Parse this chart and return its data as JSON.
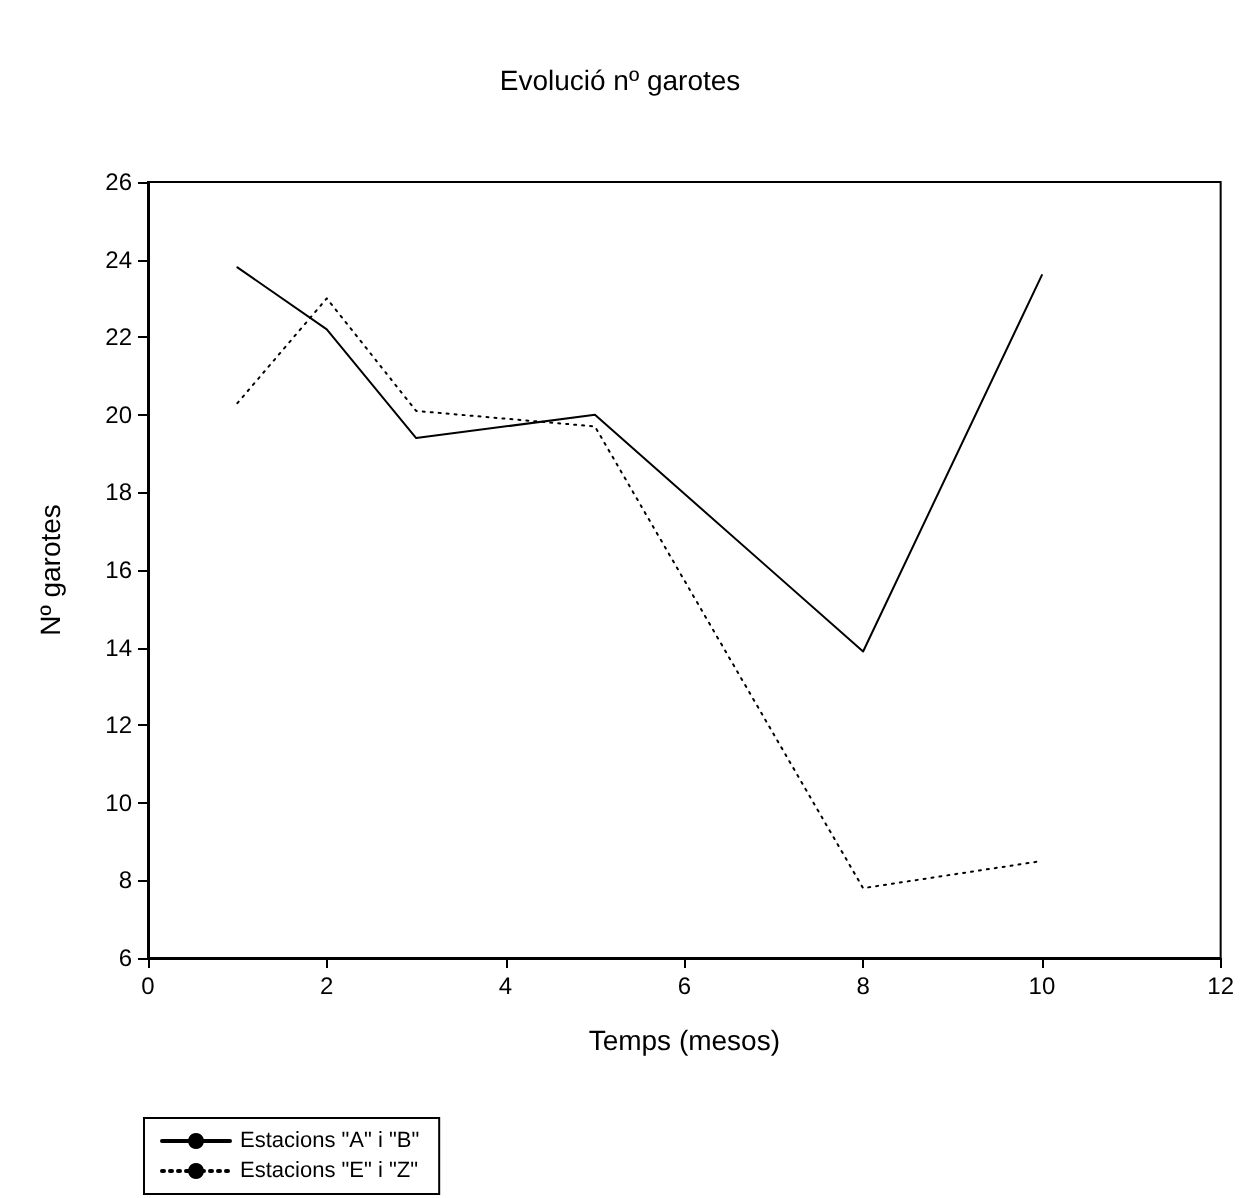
{
  "chart_data": {
    "type": "line",
    "title": "Evolució nº garotes",
    "xlabel": "Temps (mesos)",
    "ylabel": "Nº garotes",
    "x": [
      1,
      2,
      3,
      5,
      8,
      10
    ],
    "series": [
      {
        "name": "Estacions \"A\" i \"B\"",
        "color": "#000000",
        "line_style": "solid",
        "values": [
          23.8,
          22.2,
          19.4,
          20.0,
          13.9,
          23.6
        ]
      },
      {
        "name": "Estacions \"E\" i \"Z\"",
        "color": "#000000",
        "line_style": "dotted",
        "values": [
          20.3,
          23.0,
          20.1,
          19.7,
          7.8,
          8.5
        ]
      }
    ],
    "xlim": [
      0,
      12
    ],
    "xticks": [
      0,
      2,
      4,
      6,
      8,
      10,
      12
    ],
    "ylim": [
      6,
      26
    ],
    "yticks": [
      6,
      8,
      10,
      12,
      14,
      16,
      18,
      20,
      22,
      24,
      26
    ],
    "grid": false,
    "legend": "bottom left",
    "marker": "none"
  }
}
